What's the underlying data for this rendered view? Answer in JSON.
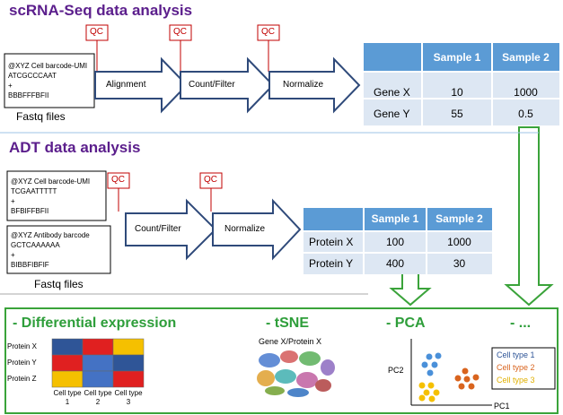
{
  "scrna": {
    "title": "scRNA-Seq data analysis",
    "fastq": {
      "lines": [
        "@XYZ Cell barcode-UMI",
        "ATCGCCCAAT",
        "+",
        "BBBFFFBFII"
      ]
    },
    "fastq_label": "Fastq files",
    "qc": [
      "QC",
      "QC",
      "QC"
    ],
    "steps": [
      "Alignment",
      "Count/Filter",
      "Normalize"
    ],
    "table": {
      "header": [
        "Sample 1",
        "Sample 2"
      ],
      "rows": [
        [
          "Gene X",
          "10",
          "1000"
        ],
        [
          "Gene Y",
          "55",
          "0.5"
        ]
      ]
    }
  },
  "adt": {
    "title": "ADT data analysis",
    "fastq": [
      {
        "lines": [
          "@XYZ Cell barcode-UMI",
          "TCGAATTTTT",
          "+",
          "BFBIFFBFII"
        ]
      },
      {
        "lines": [
          "@XYZ Antibody barcode",
          "GCTCAAAAAA",
          "+",
          "BIBBFIBFIF"
        ]
      }
    ],
    "fastq_label": "Fastq files",
    "qc": [
      "QC",
      "QC"
    ],
    "steps": [
      "Count/Filter",
      "Normalize"
    ],
    "table": {
      "header": [
        "Sample 1",
        "Sample 2"
      ],
      "rows": [
        [
          "Protein X",
          "100",
          "1000"
        ],
        [
          "Protein Y",
          "400",
          "30"
        ]
      ]
    }
  },
  "downstream": {
    "headings": [
      "- Differential expression",
      "- tSNE",
      "- PCA",
      "- ..."
    ],
    "heatmap": {
      "rows": [
        "Protein X",
        "Protein Y",
        "Protein Z"
      ],
      "cols": [
        "Cell type 1",
        "Cell type 2",
        "Cell type 3"
      ]
    },
    "tsne_label": "Gene X/Protein X",
    "pca": {
      "ylabel": "PC2",
      "xlabel": "PC1",
      "legend": [
        "Cell type 1",
        "Cell type 2",
        "Cell type 3"
      ]
    }
  }
}
